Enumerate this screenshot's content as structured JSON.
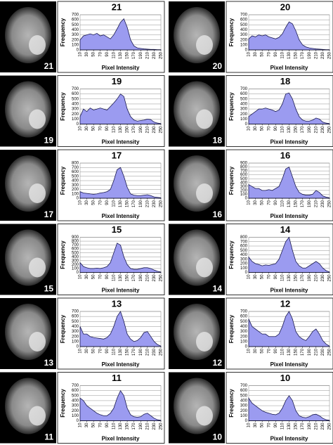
{
  "chart_data": [
    {
      "type": "area",
      "title": "21",
      "xlabel": "Pixel Intensity",
      "ylabel": "Frequency",
      "x": [
        10,
        20,
        30,
        40,
        50,
        60,
        70,
        80,
        90,
        100,
        110,
        120,
        130,
        140,
        150,
        160,
        170,
        180,
        190,
        200,
        210,
        220,
        230,
        240,
        250
      ],
      "values": [
        200,
        280,
        300,
        320,
        300,
        330,
        280,
        300,
        260,
        220,
        300,
        420,
        550,
        620,
        450,
        200,
        80,
        40,
        30,
        20,
        15,
        10,
        10,
        5,
        5
      ],
      "color": "#9b9bf0",
      "xlim": [
        10,
        250
      ],
      "ylim": [
        0,
        700
      ],
      "xticks": [
        10,
        30,
        50,
        70,
        90,
        110,
        130,
        150,
        170,
        190,
        210,
        230,
        250
      ],
      "yticks": [
        0,
        100,
        200,
        300,
        400,
        500,
        600,
        700
      ],
      "grid": true
    },
    {
      "type": "area",
      "title": "20",
      "xlabel": "Pixel Intensity",
      "ylabel": "Frequency",
      "x": [
        10,
        20,
        30,
        40,
        50,
        60,
        70,
        80,
        90,
        100,
        110,
        120,
        130,
        140,
        150,
        160,
        170,
        180,
        190,
        200,
        210,
        220,
        230,
        240,
        250
      ],
      "values": [
        220,
        280,
        260,
        300,
        280,
        300,
        260,
        240,
        220,
        250,
        320,
        450,
        560,
        520,
        380,
        200,
        100,
        60,
        40,
        30,
        20,
        15,
        10,
        5,
        5
      ],
      "color": "#9b9bf0",
      "xlim": [
        10,
        250
      ],
      "ylim": [
        0,
        700
      ],
      "xticks": [
        10,
        30,
        50,
        70,
        90,
        110,
        130,
        150,
        170,
        190,
        210,
        230,
        250
      ],
      "yticks": [
        0,
        100,
        200,
        300,
        400,
        500,
        600,
        700
      ],
      "grid": true
    },
    {
      "type": "area",
      "title": "19",
      "xlabel": "Pixel Intensity",
      "ylabel": "Frequency",
      "x": [
        10,
        20,
        30,
        40,
        50,
        60,
        70,
        80,
        90,
        100,
        110,
        120,
        130,
        140,
        150,
        160,
        170,
        180,
        190,
        200,
        210,
        220,
        230,
        240,
        250
      ],
      "values": [
        150,
        300,
        250,
        320,
        280,
        300,
        320,
        300,
        280,
        350,
        420,
        500,
        600,
        550,
        300,
        150,
        80,
        60,
        70,
        80,
        100,
        90,
        40,
        20,
        10
      ],
      "color": "#9b9bf0",
      "xlim": [
        10,
        250
      ],
      "ylim": [
        0,
        700
      ],
      "xticks": [
        10,
        30,
        50,
        70,
        90,
        110,
        130,
        150,
        170,
        190,
        210,
        230,
        250
      ],
      "yticks": [
        0,
        100,
        200,
        300,
        400,
        500,
        600,
        700
      ],
      "grid": true
    },
    {
      "type": "area",
      "title": "18",
      "xlabel": "Pixel Intensity",
      "ylabel": "Frequency",
      "x": [
        10,
        20,
        30,
        40,
        50,
        60,
        70,
        80,
        90,
        100,
        110,
        120,
        130,
        140,
        150,
        160,
        170,
        180,
        190,
        200,
        210,
        220,
        230,
        240,
        250
      ],
      "values": [
        150,
        200,
        250,
        300,
        300,
        320,
        300,
        280,
        250,
        280,
        400,
        600,
        620,
        500,
        300,
        150,
        80,
        60,
        60,
        80,
        120,
        100,
        40,
        20,
        10
      ],
      "color": "#9b9bf0",
      "xlim": [
        10,
        250
      ],
      "ylim": [
        0,
        700
      ],
      "xticks": [
        10,
        30,
        50,
        70,
        90,
        110,
        130,
        150,
        170,
        190,
        210,
        230,
        250
      ],
      "yticks": [
        0,
        100,
        200,
        300,
        400,
        500,
        600,
        700
      ],
      "grid": true
    },
    {
      "type": "area",
      "title": "17",
      "xlabel": "Pixel Intensity",
      "ylabel": "Frequency",
      "x": [
        10,
        20,
        30,
        40,
        50,
        60,
        70,
        80,
        90,
        100,
        110,
        120,
        130,
        140,
        150,
        160,
        170,
        180,
        190,
        200,
        210,
        220,
        230,
        240,
        250
      ],
      "values": [
        150,
        120,
        110,
        100,
        90,
        100,
        120,
        130,
        150,
        200,
        400,
        650,
        700,
        500,
        250,
        100,
        70,
        60,
        60,
        70,
        80,
        60,
        30,
        20,
        10
      ],
      "color": "#9b9bf0",
      "xlim": [
        10,
        250
      ],
      "ylim": [
        0,
        800
      ],
      "xticks": [
        10,
        30,
        50,
        70,
        90,
        110,
        130,
        150,
        170,
        190,
        210,
        230,
        250
      ],
      "yticks": [
        0,
        100,
        200,
        300,
        400,
        500,
        600,
        700,
        800
      ],
      "grid": true
    },
    {
      "type": "area",
      "title": "16",
      "xlabel": "Pixel Intensity",
      "ylabel": "Frequency",
      "x": [
        10,
        20,
        30,
        40,
        50,
        60,
        70,
        80,
        90,
        100,
        110,
        120,
        130,
        140,
        150,
        160,
        170,
        180,
        190,
        200,
        210,
        220,
        230,
        240,
        250
      ],
      "values": [
        350,
        300,
        250,
        250,
        200,
        200,
        220,
        200,
        250,
        300,
        500,
        750,
        800,
        550,
        300,
        150,
        100,
        80,
        80,
        100,
        200,
        150,
        60,
        30,
        10
      ],
      "color": "#9b9bf0",
      "xlim": [
        10,
        250
      ],
      "ylim": [
        0,
        900
      ],
      "xticks": [
        10,
        30,
        50,
        70,
        90,
        110,
        130,
        150,
        170,
        190,
        210,
        230,
        250
      ],
      "yticks": [
        0,
        100,
        200,
        300,
        400,
        500,
        600,
        700,
        800,
        900
      ],
      "grid": true
    },
    {
      "type": "area",
      "title": "15",
      "xlabel": "Pixel Intensity",
      "ylabel": "Frequency",
      "x": [
        10,
        20,
        30,
        40,
        50,
        60,
        70,
        80,
        90,
        100,
        110,
        120,
        130,
        140,
        150,
        160,
        170,
        180,
        190,
        200,
        210,
        220,
        230,
        240,
        250
      ],
      "values": [
        250,
        150,
        120,
        100,
        100,
        110,
        100,
        120,
        150,
        250,
        500,
        750,
        700,
        400,
        200,
        100,
        80,
        80,
        100,
        120,
        120,
        100,
        60,
        30,
        10
      ],
      "color": "#9b9bf0",
      "xlim": [
        10,
        250
      ],
      "ylim": [
        0,
        900
      ],
      "xticks": [
        10,
        30,
        50,
        70,
        90,
        110,
        130,
        150,
        170,
        190,
        210,
        230,
        250
      ],
      "yticks": [
        0,
        100,
        200,
        300,
        400,
        500,
        600,
        700,
        800,
        900
      ],
      "grid": true
    },
    {
      "type": "area",
      "title": "14",
      "xlabel": "Pixel Intensity",
      "ylabel": "Frequency",
      "x": [
        10,
        20,
        30,
        40,
        50,
        60,
        70,
        80,
        90,
        100,
        110,
        120,
        130,
        140,
        150,
        160,
        170,
        180,
        190,
        200,
        210,
        220,
        230,
        240,
        250
      ],
      "values": [
        350,
        250,
        200,
        180,
        150,
        170,
        160,
        180,
        200,
        300,
        500,
        700,
        800,
        500,
        250,
        150,
        100,
        100,
        150,
        200,
        250,
        200,
        100,
        40,
        10
      ],
      "color": "#9b9bf0",
      "xlim": [
        10,
        250
      ],
      "ylim": [
        0,
        800
      ],
      "xticks": [
        10,
        30,
        50,
        70,
        90,
        110,
        130,
        150,
        170,
        190,
        210,
        230,
        250
      ],
      "yticks": [
        0,
        100,
        200,
        300,
        400,
        500,
        600,
        700,
        800
      ],
      "grid": true
    },
    {
      "type": "area",
      "title": "13",
      "xlabel": "Pixel Intensity",
      "ylabel": "Frequency",
      "x": [
        10,
        20,
        30,
        40,
        50,
        60,
        70,
        80,
        90,
        100,
        110,
        120,
        130,
        140,
        150,
        160,
        170,
        180,
        190,
        200,
        210,
        220,
        230,
        240,
        250
      ],
      "values": [
        400,
        250,
        250,
        200,
        180,
        170,
        160,
        150,
        180,
        250,
        400,
        600,
        700,
        500,
        250,
        150,
        100,
        120,
        180,
        280,
        300,
        200,
        100,
        40,
        10
      ],
      "color": "#9b9bf0",
      "xlim": [
        10,
        250
      ],
      "ylim": [
        0,
        700
      ],
      "xticks": [
        10,
        30,
        50,
        70,
        90,
        110,
        130,
        150,
        170,
        190,
        210,
        230,
        250
      ],
      "yticks": [
        0,
        100,
        200,
        300,
        400,
        500,
        600,
        700
      ],
      "grid": true
    },
    {
      "type": "area",
      "title": "12",
      "xlabel": "Pixel Intensity",
      "ylabel": "Frequency",
      "x": [
        10,
        20,
        30,
        40,
        50,
        60,
        70,
        80,
        90,
        100,
        110,
        120,
        130,
        140,
        150,
        160,
        170,
        180,
        190,
        200,
        210,
        220,
        230,
        240,
        250
      ],
      "values": [
        550,
        400,
        350,
        300,
        250,
        250,
        200,
        200,
        200,
        250,
        400,
        600,
        700,
        550,
        300,
        200,
        150,
        120,
        200,
        300,
        350,
        250,
        120,
        50,
        10
      ],
      "color": "#9b9bf0",
      "xlim": [
        10,
        250
      ],
      "ylim": [
        0,
        700
      ],
      "xticks": [
        10,
        30,
        50,
        70,
        90,
        110,
        130,
        150,
        170,
        190,
        210,
        230,
        250
      ],
      "yticks": [
        0,
        100,
        200,
        300,
        400,
        500,
        600,
        700
      ],
      "grid": true
    },
    {
      "type": "area",
      "title": "11",
      "xlabel": "Pixel Intensity",
      "ylabel": "Frequency",
      "x": [
        10,
        20,
        30,
        40,
        50,
        60,
        70,
        80,
        90,
        100,
        110,
        120,
        130,
        140,
        150,
        160,
        170,
        180,
        190,
        200,
        210,
        220,
        230,
        240,
        250
      ],
      "values": [
        450,
        400,
        300,
        250,
        200,
        150,
        120,
        100,
        100,
        150,
        250,
        450,
        600,
        500,
        250,
        120,
        80,
        70,
        80,
        130,
        150,
        100,
        50,
        20,
        10
      ],
      "color": "#9b9bf0",
      "xlim": [
        10,
        250
      ],
      "ylim": [
        0,
        700
      ],
      "xticks": [
        10,
        30,
        50,
        70,
        90,
        110,
        130,
        150,
        170,
        190,
        210,
        230,
        250
      ],
      "yticks": [
        0,
        100,
        200,
        300,
        400,
        500,
        600,
        700
      ],
      "grid": true
    },
    {
      "type": "area",
      "title": "10",
      "xlabel": "Pixel Intensity",
      "ylabel": "Frequency",
      "x": [
        10,
        20,
        30,
        40,
        50,
        60,
        70,
        80,
        90,
        100,
        110,
        120,
        130,
        140,
        150,
        160,
        170,
        180,
        190,
        200,
        210,
        220,
        230,
        240,
        250
      ],
      "values": [
        450,
        350,
        300,
        250,
        200,
        170,
        150,
        130,
        120,
        150,
        250,
        400,
        500,
        400,
        200,
        100,
        70,
        60,
        80,
        120,
        130,
        100,
        50,
        20,
        10
      ],
      "color": "#9b9bf0",
      "xlim": [
        10,
        250
      ],
      "ylim": [
        0,
        700
      ],
      "xticks": [
        10,
        30,
        50,
        70,
        90,
        110,
        130,
        150,
        170,
        190,
        210,
        230,
        250
      ],
      "yticks": [
        0,
        100,
        200,
        300,
        400,
        500,
        600,
        700
      ],
      "grid": true
    }
  ],
  "images": [
    "21",
    "20",
    "19",
    "18",
    "17",
    "16",
    "15",
    "14",
    "13",
    "12",
    "11",
    "10"
  ]
}
